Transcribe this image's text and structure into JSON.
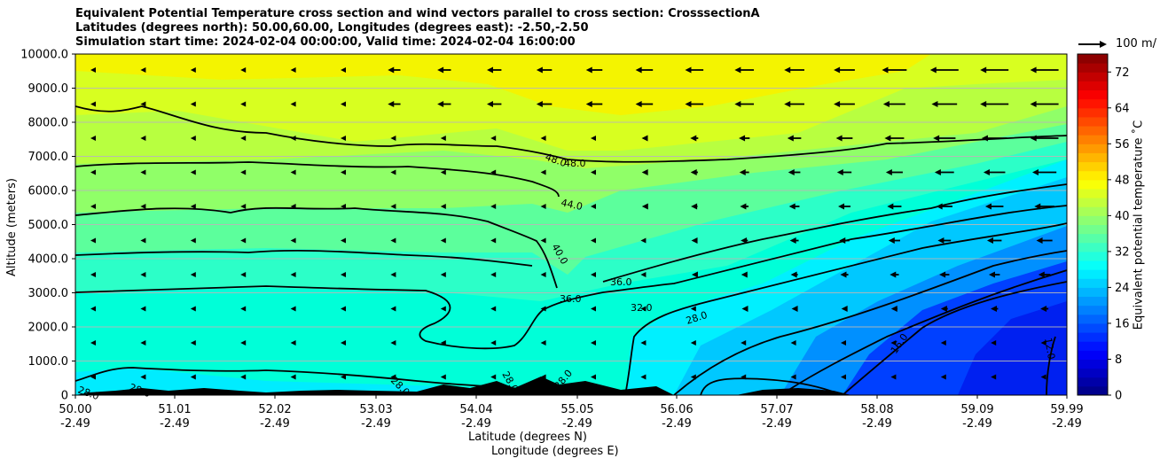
{
  "title": {
    "line1": "Equivalent Potential Temperature cross section and wind vectors parallel to cross section: CrosssectionA",
    "line2": "Latitudes (degrees north): 50.00,60.00, Longitudes (degrees east): -2.50,-2.50",
    "line3": "Simulation start time: 2024-02-04 00:00:00, Valid time: 2024-02-04 16:00:00"
  },
  "chart_data": {
    "type": "contour",
    "title": "Equivalent Potential Temperature cross section and wind vectors parallel to cross section: CrosssectionA",
    "xlabel_lat": "Latitude (degrees N)",
    "xlabel_lon": "Longitude (degrees E)",
    "ylabel": "Altitude (meters)",
    "ylim": [
      0,
      10000
    ],
    "xlim": [
      50.0,
      59.99
    ],
    "yticks": [
      "0",
      "1000.0",
      "2000.0",
      "3000.0",
      "4000.0",
      "5000.0",
      "6000.0",
      "7000.0",
      "8000.0",
      "9000.0",
      "10000.0"
    ],
    "xticks_lat": [
      "50.00",
      "51.01",
      "52.02",
      "53.03",
      "54.04",
      "55.05",
      "56.06",
      "57.07",
      "58.08",
      "59.09",
      "59.99"
    ],
    "xticks_lon": [
      "-2.49",
      "-2.49",
      "-2.49",
      "-2.49",
      "-2.49",
      "-2.49",
      "-2.49",
      "-2.49",
      "-2.49",
      "-2.49",
      "-2.49"
    ],
    "colorbar_label": "Equivalent potential temperature ˚C",
    "colorbar_range": [
      0,
      76
    ],
    "colorbar_ticks": [
      "0",
      "8",
      "16",
      "24",
      "32",
      "40",
      "48",
      "56",
      "64",
      "72"
    ],
    "contour_labels": [
      "48.0",
      "48.0",
      "44.0",
      "40.0",
      "36.0",
      "36.0",
      "32.0",
      "28.0",
      "28.0",
      "28.0",
      "28.0",
      "28.0",
      "28.0",
      "16.0",
      "12.0"
    ],
    "wind_reference": "100 m/",
    "grid": "horizontal"
  }
}
